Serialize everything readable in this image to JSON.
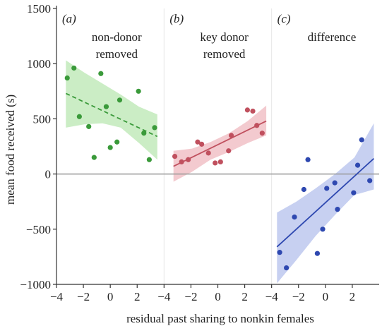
{
  "chart_data": {
    "type": "scatter",
    "ylabel": "mean food received (s)",
    "xlabel": "residual past sharing to nonkin females",
    "ylim": [
      -1000,
      1500
    ],
    "yticks": [
      -1000,
      -500,
      0,
      500,
      1000,
      1500
    ],
    "zero_line": 0,
    "panel_xlim": [
      -4,
      4
    ],
    "xtick_labels": [
      "−4",
      "−2",
      "0",
      "2",
      "−4",
      "−2",
      "0",
      "2",
      "−4",
      "−2",
      "0",
      "2"
    ],
    "panels": [
      {
        "letter": "(a)",
        "title_lines": [
          "non-donor",
          "removed"
        ],
        "color": "#3a9a3a",
        "band_color": "#c8ecc2",
        "line_style": "dashed",
        "points": [
          {
            "x": -3.2,
            "y": 870
          },
          {
            "x": -2.7,
            "y": 960
          },
          {
            "x": -2.3,
            "y": 520
          },
          {
            "x": -1.6,
            "y": 430
          },
          {
            "x": -1.2,
            "y": 150
          },
          {
            "x": -0.7,
            "y": 910
          },
          {
            "x": -0.3,
            "y": 610
          },
          {
            "x": 0.0,
            "y": 240
          },
          {
            "x": 0.5,
            "y": 290
          },
          {
            "x": 0.7,
            "y": 670
          },
          {
            "x": 2.1,
            "y": 750
          },
          {
            "x": 2.5,
            "y": 370
          },
          {
            "x": 2.9,
            "y": 130
          },
          {
            "x": 3.3,
            "y": 420
          }
        ],
        "fit": {
          "x": [
            -3.3,
            3.5
          ],
          "y": [
            730,
            340
          ]
        },
        "band_upper": [
          1030,
          920,
          820,
          720,
          610,
          540
        ],
        "band_lower": [
          420,
          450,
          460,
          420,
          280,
          130
        ]
      },
      {
        "letter": "(b)",
        "title_lines": [
          "key donor",
          "removed"
        ],
        "color": "#c0505e",
        "band_color": "#f2c7cc",
        "line_style": "solid",
        "points": [
          {
            "x": -3.2,
            "y": 160
          },
          {
            "x": -2.7,
            "y": 110
          },
          {
            "x": -2.2,
            "y": 130
          },
          {
            "x": -1.5,
            "y": 290
          },
          {
            "x": -1.2,
            "y": 270
          },
          {
            "x": -0.7,
            "y": 190
          },
          {
            "x": -0.2,
            "y": 100
          },
          {
            "x": 0.2,
            "y": 110
          },
          {
            "x": 0.8,
            "y": 210
          },
          {
            "x": 1.0,
            "y": 350
          },
          {
            "x": 2.2,
            "y": 580
          },
          {
            "x": 2.6,
            "y": 570
          },
          {
            "x": 2.9,
            "y": 440
          },
          {
            "x": 3.3,
            "y": 370
          }
        ],
        "fit": {
          "x": [
            -3.3,
            3.6
          ],
          "y": [
            70,
            480
          ]
        },
        "band_upper": [
          210,
          230,
          290,
          370,
          480,
          620
        ],
        "band_lower": [
          -70,
          20,
          130,
          200,
          280,
          350
        ]
      },
      {
        "letter": "(c)",
        "title_lines": [
          "difference"
        ],
        "color": "#2e48b0",
        "band_color": "#c4cdf0",
        "line_style": "solid",
        "points": [
          {
            "x": -3.4,
            "y": -710
          },
          {
            "x": -2.9,
            "y": -850
          },
          {
            "x": -2.3,
            "y": -390
          },
          {
            "x": -1.6,
            "y": -140
          },
          {
            "x": -1.3,
            "y": 130
          },
          {
            "x": -0.6,
            "y": -720
          },
          {
            "x": -0.2,
            "y": -500
          },
          {
            "x": 0.1,
            "y": -130
          },
          {
            "x": 0.7,
            "y": -80
          },
          {
            "x": 0.9,
            "y": -320
          },
          {
            "x": 2.1,
            "y": -170
          },
          {
            "x": 2.4,
            "y": 80
          },
          {
            "x": 2.7,
            "y": 310
          },
          {
            "x": 3.3,
            "y": -60
          }
        ],
        "fit": {
          "x": [
            -3.6,
            3.6
          ],
          "y": [
            -660,
            140
          ]
        },
        "band_upper": [
          -350,
          -250,
          -130,
          0,
          150,
          460
        ],
        "band_lower": [
          -990,
          -780,
          -560,
          -370,
          -190,
          -140
        ]
      }
    ]
  }
}
